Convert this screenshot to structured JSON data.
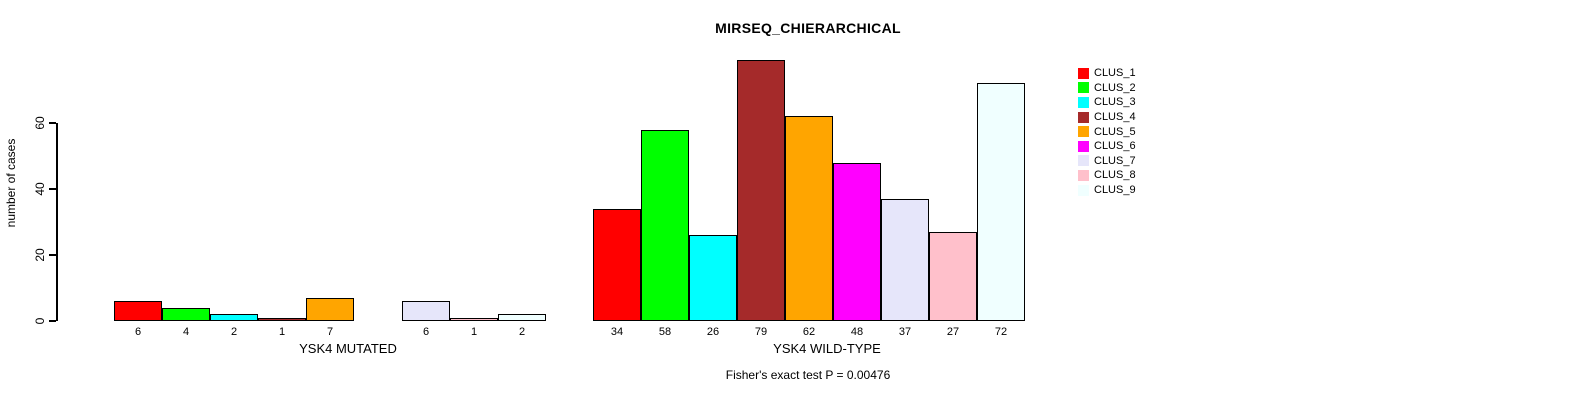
{
  "title": "MIRSEQ_CHIERARCHICAL",
  "annotation": "Fisher's exact test P = 0.00476",
  "y_axis": {
    "label": "number of cases",
    "ticks": [
      "0",
      "20",
      "40",
      "60"
    ]
  },
  "x_axis": {
    "group_labels": [
      "YSK4 MUTATED",
      "YSK4 WILD-TYPE"
    ]
  },
  "legend": {
    "position": "right",
    "items": [
      {
        "label": "CLUS_1",
        "color": "#FF0000"
      },
      {
        "label": "CLUS_2",
        "color": "#00FF00"
      },
      {
        "label": "CLUS_3",
        "color": "#00FFFF"
      },
      {
        "label": "CLUS_4",
        "color": "#A52A2A"
      },
      {
        "label": "CLUS_5",
        "color": "#FFA500"
      },
      {
        "label": "CLUS_6",
        "color": "#FF00FF"
      },
      {
        "label": "CLUS_7",
        "color": "#E6E6FA"
      },
      {
        "label": "CLUS_8",
        "color": "#FFC0CB"
      },
      {
        "label": "CLUS_9",
        "color": "#F0FFFF"
      }
    ]
  },
  "chart_data": {
    "type": "bar",
    "title": "MIRSEQ_CHIERARCHICAL",
    "ylabel": "number of cases",
    "xlabel": "",
    "ylim": [
      0,
      79
    ],
    "yticks": [
      0,
      20,
      40,
      60
    ],
    "grid": false,
    "legend_position": "right",
    "categories": [
      "CLUS_1",
      "CLUS_2",
      "CLUS_3",
      "CLUS_4",
      "CLUS_5",
      "CLUS_6",
      "CLUS_7",
      "CLUS_8",
      "CLUS_9"
    ],
    "colors": [
      "#FF0000",
      "#00FF00",
      "#00FFFF",
      "#A52A2A",
      "#FFA500",
      "#FF00FF",
      "#E6E6FA",
      "#FFC0CB",
      "#F0FFFF"
    ],
    "groups": [
      {
        "label": "YSK4 MUTATED",
        "values": [
          6,
          4,
          2,
          1,
          7,
          0,
          6,
          1,
          2
        ],
        "bar_labels": [
          "6",
          "4",
          "2",
          "1",
          "7",
          "",
          "6",
          "1",
          "2"
        ]
      },
      {
        "label": "YSK4 WILD-TYPE",
        "values": [
          34,
          58,
          26,
          79,
          62,
          48,
          37,
          27,
          72
        ],
        "bar_labels": [
          "34",
          "58",
          "26",
          "79",
          "62",
          "48",
          "37",
          "27",
          "72"
        ]
      }
    ],
    "annotation": "Fisher's exact test P = 0.00476"
  }
}
